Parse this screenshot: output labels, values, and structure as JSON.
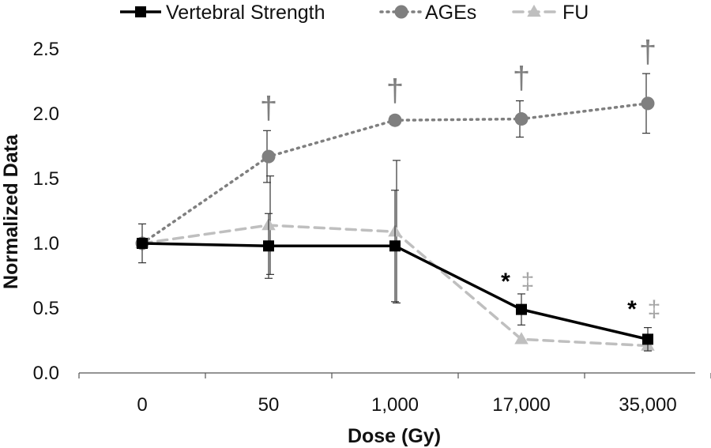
{
  "chart_data": {
    "type": "line",
    "xlabel": "Dose (Gy)",
    "ylabel": "Normalized Data",
    "categories": [
      "0",
      "50",
      "1,000",
      "17,000",
      "35,000"
    ],
    "ylim": [
      0.0,
      2.5
    ],
    "yticks": [
      "0.0",
      "0.5",
      "1.0",
      "1.5",
      "2.0",
      "2.5"
    ],
    "legend_position": "top",
    "grid": false,
    "series": [
      {
        "name": "Vertebral Strength",
        "color": "#000000",
        "line_style": "solid",
        "marker": "square",
        "values": [
          1.0,
          0.98,
          0.98,
          0.49,
          0.26
        ],
        "errors": [
          0.15,
          0.25,
          0.43,
          0.12,
          0.09
        ]
      },
      {
        "name": "AGEs",
        "color": "#7f7f7f",
        "line_style": "dotted",
        "marker": "circle",
        "values": [
          1.0,
          1.67,
          1.95,
          1.96,
          2.08
        ],
        "errors": [
          0.0,
          0.2,
          0.03,
          0.14,
          0.23
        ]
      },
      {
        "name": "FU",
        "color": "#bfbfbf",
        "line_style": "dashed",
        "marker": "triangle",
        "values": [
          1.0,
          1.14,
          1.09,
          0.26,
          0.21
        ],
        "errors": [
          0.0,
          0.38,
          0.55,
          0.0,
          0.0
        ]
      }
    ],
    "annotations": [
      {
        "text": "†",
        "category_index": 1,
        "color": "#7f7f7f"
      },
      {
        "text": "†",
        "category_index": 2,
        "color": "#7f7f7f"
      },
      {
        "text": "†",
        "category_index": 3,
        "color": "#7f7f7f"
      },
      {
        "text": "†",
        "category_index": 4,
        "color": "#7f7f7f"
      },
      {
        "text": "*",
        "category_index": 3,
        "color": "#000000"
      },
      {
        "text": "‡",
        "category_index": 3,
        "color": "#a6a6a6"
      },
      {
        "text": "*",
        "category_index": 4,
        "color": "#000000"
      },
      {
        "text": "‡",
        "category_index": 4,
        "color": "#a6a6a6"
      }
    ]
  }
}
